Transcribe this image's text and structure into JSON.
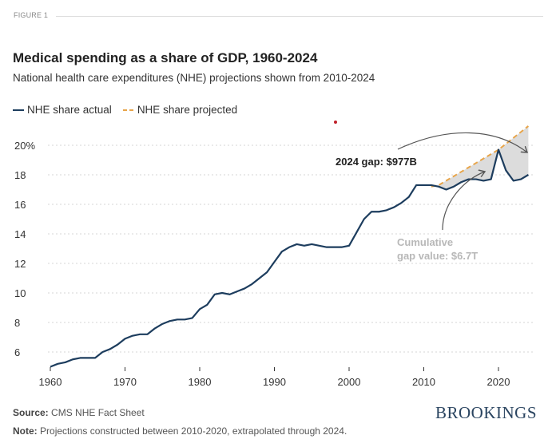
{
  "figure_label": "FIGURE 1",
  "logo": "BROOKINGS",
  "footer": {
    "source_label": "Source:",
    "source_text": "CMS NHE Fact Sheet",
    "note_label": "Note:",
    "note_text": "Projections constructed between 2010-2020, extrapolated through 2024."
  },
  "chart_data": {
    "type": "line",
    "title": "Medical spending as a share of GDP, 1960-2024",
    "subtitle": "National health care expenditures (NHE) projections shown from 2010-2024",
    "xlabel": "",
    "ylabel": "",
    "xlim": [
      1960,
      2024
    ],
    "ylim": [
      5,
      21.5
    ],
    "grid": true,
    "legend_placement": "top-left",
    "x_ticks": [
      "1960",
      "1970",
      "1980",
      "1990",
      "2000",
      "2010",
      "2020"
    ],
    "y_ticks": [
      "6",
      "8",
      "10",
      "12",
      "14",
      "16",
      "18",
      "20%"
    ],
    "y_tick_values": [
      6,
      8,
      10,
      12,
      14,
      16,
      18,
      20
    ],
    "colors": {
      "actual": "#1d3d5e",
      "projected": "#e8a54a",
      "gap": "#dcdcdc"
    },
    "series": [
      {
        "name": "NHE share actual",
        "x": [
          1960,
          1961,
          1962,
          1963,
          1964,
          1965,
          1966,
          1967,
          1968,
          1969,
          1970,
          1971,
          1972,
          1973,
          1974,
          1975,
          1976,
          1977,
          1978,
          1979,
          1980,
          1981,
          1982,
          1983,
          1984,
          1985,
          1986,
          1987,
          1988,
          1989,
          1990,
          1991,
          1992,
          1993,
          1994,
          1995,
          1996,
          1997,
          1998,
          1999,
          2000,
          2001,
          2002,
          2003,
          2004,
          2005,
          2006,
          2007,
          2008,
          2009,
          2010,
          2011,
          2012,
          2013,
          2014,
          2015,
          2016,
          2017,
          2018,
          2019,
          2020,
          2021,
          2022,
          2023,
          2024
        ],
        "values": [
          5.0,
          5.2,
          5.3,
          5.5,
          5.6,
          5.6,
          5.6,
          6.0,
          6.2,
          6.5,
          6.9,
          7.1,
          7.2,
          7.2,
          7.6,
          7.9,
          8.1,
          8.2,
          8.2,
          8.3,
          8.9,
          9.2,
          9.9,
          10.0,
          9.9,
          10.1,
          10.3,
          10.6,
          11.0,
          11.4,
          12.1,
          12.8,
          13.1,
          13.3,
          13.2,
          13.3,
          13.2,
          13.1,
          13.1,
          13.1,
          13.2,
          14.1,
          15.0,
          15.5,
          15.5,
          15.6,
          15.8,
          16.1,
          16.5,
          17.3,
          17.3,
          17.3,
          17.2,
          17.0,
          17.2,
          17.5,
          17.7,
          17.7,
          17.6,
          17.7,
          19.7,
          18.3,
          17.6,
          17.7,
          18.0
        ]
      },
      {
        "name": "NHE share projected",
        "x": [
          2011,
          2012,
          2013,
          2014,
          2015,
          2016,
          2017,
          2018,
          2019,
          2020,
          2021,
          2022,
          2023,
          2024
        ],
        "values": [
          17.2,
          17.3,
          17.6,
          17.9,
          18.2,
          18.5,
          18.8,
          19.1,
          19.4,
          19.7,
          20.1,
          20.5,
          20.9,
          21.3
        ]
      }
    ],
    "annotations": [
      {
        "text": "2024 gap: $977B"
      },
      {
        "text_line1": "Cumulative",
        "text_line2": "gap value: $6.7T"
      }
    ]
  }
}
